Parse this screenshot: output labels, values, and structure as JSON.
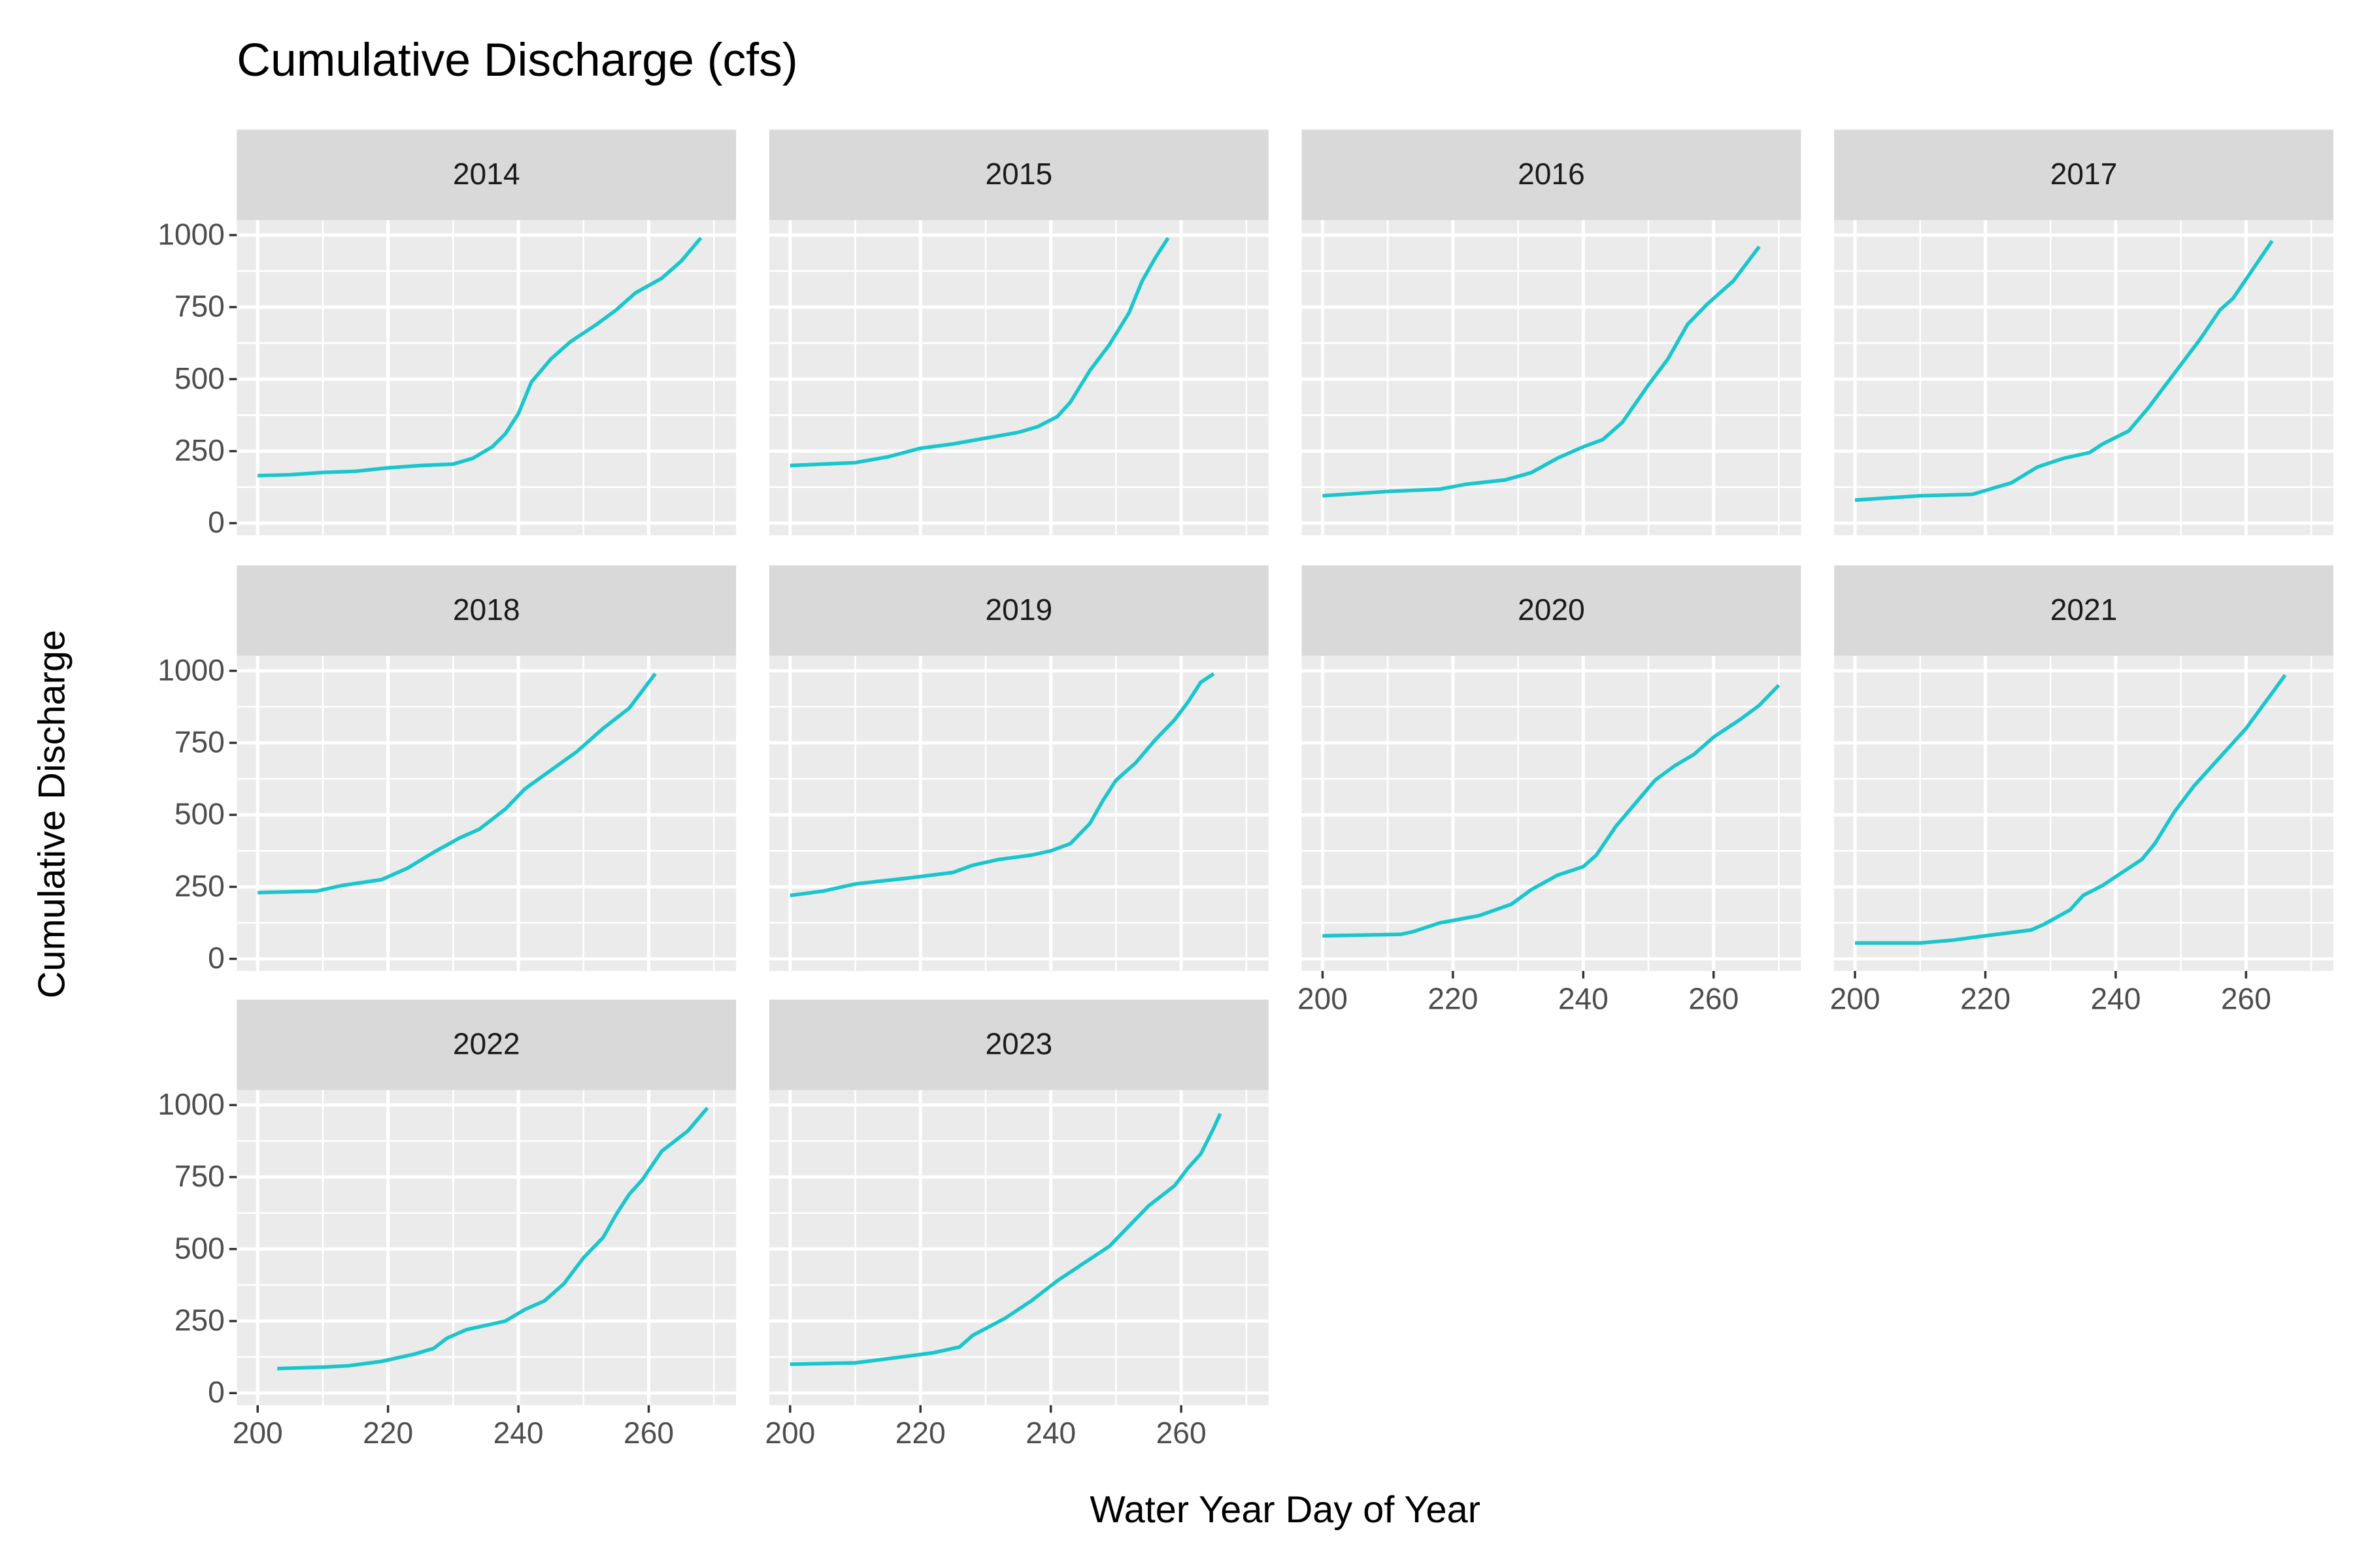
{
  "chart_data": {
    "type": "line",
    "title": "Cumulative Discharge (cfs)",
    "x_label": "Water Year Day of Year",
    "y_label": "Cumulative Discharge",
    "color": "#1ac6cc",
    "grid": true,
    "xlim": [
      196.8,
      273.4
    ],
    "ylim": [
      -42,
      1052
    ],
    "xticks": [
      200,
      220,
      240,
      260
    ],
    "yticks": [
      0,
      250,
      500,
      750,
      1000
    ],
    "minor_xticks": [
      210,
      230,
      250,
      270
    ],
    "minor_yticks": [
      125,
      375,
      625,
      875
    ],
    "panels": [
      {
        "title": "2014",
        "x": [
          200,
          205,
          210,
          215,
          220,
          225,
          230,
          233,
          236,
          238,
          240,
          242,
          245,
          248,
          252,
          255,
          258,
          262,
          265,
          268
        ],
        "values": [
          165,
          168,
          176,
          180,
          192,
          200,
          205,
          225,
          265,
          310,
          380,
          490,
          570,
          630,
          690,
          740,
          800,
          850,
          910,
          990
        ]
      },
      {
        "title": "2015",
        "x": [
          200,
          210,
          215,
          220,
          225,
          230,
          235,
          238,
          241,
          243,
          246,
          249,
          252,
          254,
          256,
          258
        ],
        "values": [
          200,
          210,
          230,
          260,
          275,
          295,
          315,
          335,
          370,
          420,
          530,
          620,
          730,
          840,
          920,
          990
        ]
      },
      {
        "title": "2016",
        "x": [
          200,
          210,
          218,
          222,
          228,
          232,
          236,
          240,
          243,
          246,
          250,
          253,
          256,
          259,
          263,
          267
        ],
        "values": [
          95,
          110,
          118,
          135,
          150,
          175,
          225,
          265,
          290,
          350,
          480,
          570,
          690,
          760,
          840,
          960
        ]
      },
      {
        "title": "2017",
        "x": [
          200,
          210,
          218,
          224,
          228,
          232,
          236,
          238,
          242,
          245,
          249,
          253,
          256,
          258,
          261,
          264
        ],
        "values": [
          80,
          95,
          100,
          140,
          195,
          225,
          245,
          275,
          320,
          400,
          520,
          640,
          740,
          780,
          880,
          980
        ]
      },
      {
        "title": "2018",
        "x": [
          200,
          209,
          213,
          219,
          223,
          227,
          231,
          234,
          238,
          241,
          245,
          249,
          253,
          257,
          261
        ],
        "values": [
          230,
          235,
          255,
          275,
          315,
          370,
          420,
          450,
          520,
          590,
          655,
          720,
          800,
          870,
          990
        ]
      },
      {
        "title": "2019",
        "x": [
          200,
          205,
          210,
          218,
          225,
          228,
          232,
          237,
          240,
          243,
          246,
          248,
          250,
          253,
          256,
          259,
          261,
          263,
          265
        ],
        "values": [
          220,
          235,
          260,
          280,
          300,
          325,
          345,
          360,
          375,
          400,
          470,
          550,
          620,
          680,
          760,
          830,
          890,
          960,
          990
        ]
      },
      {
        "title": "2020",
        "x": [
          200,
          212,
          214,
          218,
          224,
          229,
          232,
          236,
          240,
          242,
          245,
          248,
          251,
          254,
          257,
          260,
          264,
          267,
          270
        ],
        "values": [
          80,
          85,
          95,
          125,
          150,
          190,
          240,
          290,
          320,
          360,
          460,
          540,
          620,
          670,
          710,
          770,
          830,
          880,
          950
        ]
      },
      {
        "title": "2021",
        "x": [
          200,
          210,
          215,
          220,
          227,
          229,
          233,
          235,
          238,
          241,
          244,
          246,
          249,
          252,
          256,
          260,
          266
        ],
        "values": [
          55,
          55,
          65,
          80,
          100,
          120,
          170,
          220,
          255,
          300,
          345,
          400,
          510,
          600,
          700,
          800,
          985
        ]
      },
      {
        "title": "2022",
        "x": [
          203,
          210,
          214,
          219,
          224,
          227,
          229,
          232,
          235,
          238,
          241,
          244,
          247,
          250,
          253,
          255,
          257,
          259,
          262,
          266,
          269
        ],
        "values": [
          85,
          90,
          95,
          110,
          135,
          155,
          190,
          220,
          235,
          250,
          290,
          320,
          380,
          470,
          540,
          620,
          690,
          740,
          840,
          910,
          990
        ]
      },
      {
        "title": "2023",
        "x": [
          200,
          210,
          217,
          222,
          226,
          228,
          233,
          237,
          241,
          245,
          249,
          252,
          255,
          259,
          261,
          263,
          265,
          266
        ],
        "values": [
          100,
          105,
          125,
          140,
          160,
          200,
          260,
          320,
          390,
          450,
          510,
          580,
          650,
          720,
          780,
          830,
          920,
          970
        ]
      }
    ]
  }
}
